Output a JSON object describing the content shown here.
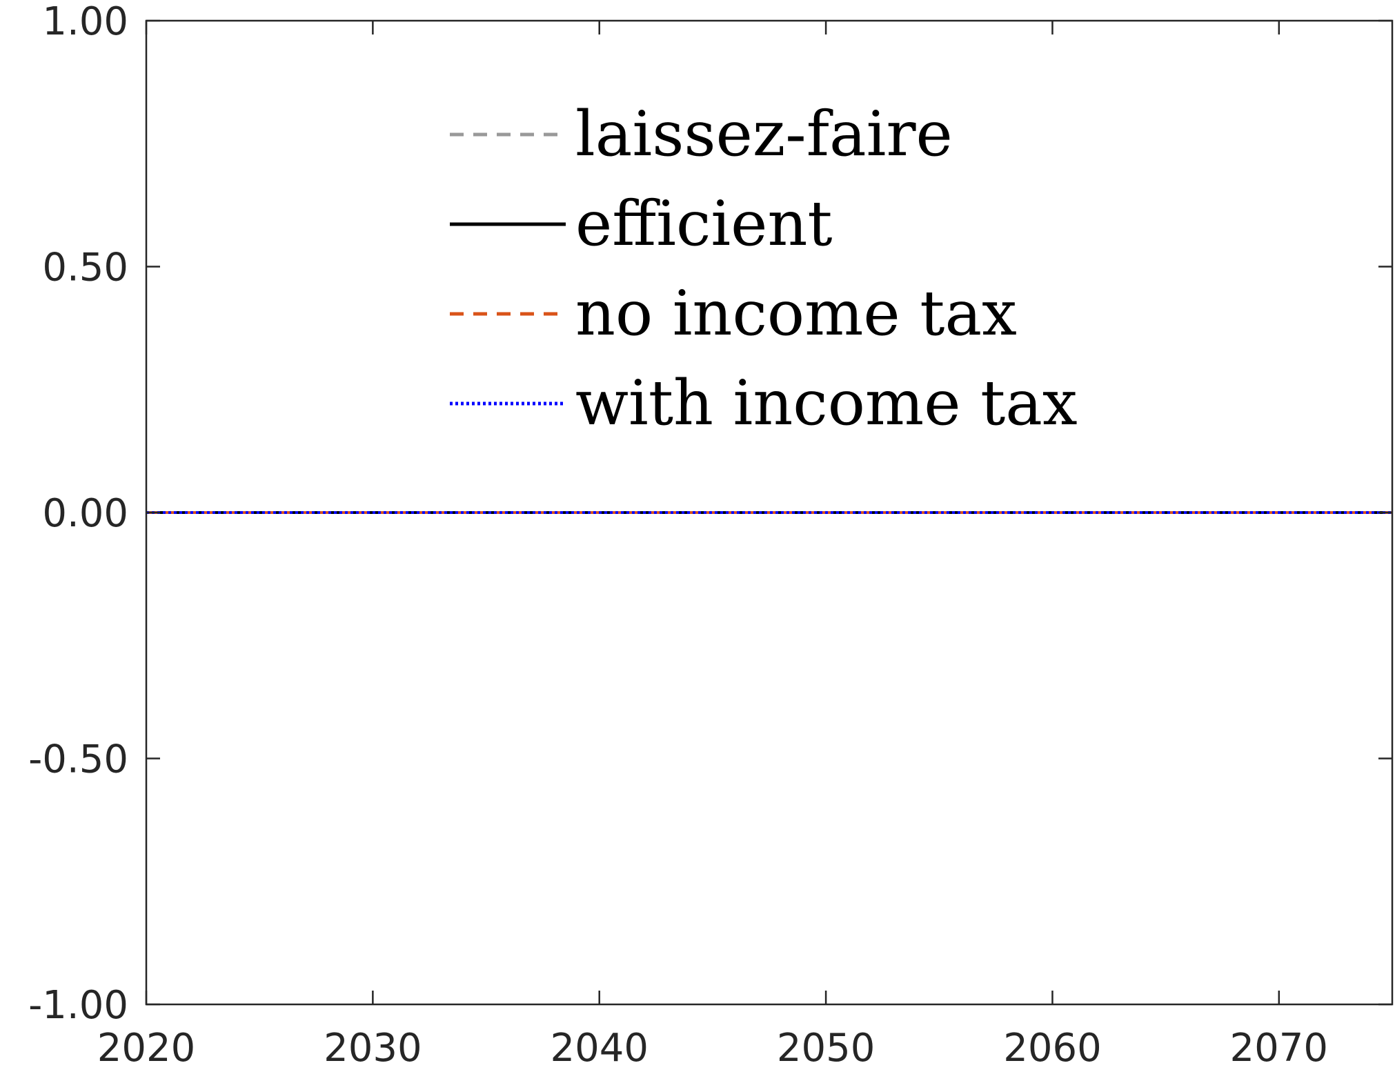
{
  "chart_data": {
    "type": "line",
    "title": "",
    "xlabel": "",
    "ylabel": "",
    "xlim": [
      2020,
      2075
    ],
    "ylim": [
      -1.0,
      1.0
    ],
    "xticks": [
      2020,
      2030,
      2040,
      2050,
      2060,
      2070
    ],
    "xtick_labels": [
      "2020",
      "2030",
      "2040",
      "2050",
      "2060",
      "2070"
    ],
    "yticks": [
      -1.0,
      -0.5,
      0.0,
      0.5,
      1.0
    ],
    "ytick_labels": [
      "-1.00",
      "-0.50",
      "0.00",
      "0.50",
      "1.00"
    ],
    "grid": false,
    "legend_position": "top-center",
    "x": [
      2020,
      2025,
      2030,
      2035,
      2040,
      2045,
      2050,
      2055,
      2060,
      2065,
      2070,
      2075
    ],
    "series": [
      {
        "name": "laissez-faire",
        "color": "#999999",
        "style": "dashed",
        "values": [
          0,
          0,
          0,
          0,
          0,
          0,
          0,
          0,
          0,
          0,
          0,
          0
        ]
      },
      {
        "name": "efficient",
        "color": "#000000",
        "style": "solid",
        "values": [
          0,
          0,
          0,
          0,
          0,
          0,
          0,
          0,
          0,
          0,
          0,
          0
        ]
      },
      {
        "name": "no income tax",
        "color": "#D95319",
        "style": "dashed",
        "values": [
          0,
          0,
          0,
          0,
          0,
          0,
          0,
          0,
          0,
          0,
          0,
          0
        ]
      },
      {
        "name": "with income tax",
        "color": "#0000FF",
        "style": "dotted",
        "values": [
          0,
          0,
          0,
          0,
          0,
          0,
          0,
          0,
          0,
          0,
          0,
          0
        ]
      }
    ]
  }
}
